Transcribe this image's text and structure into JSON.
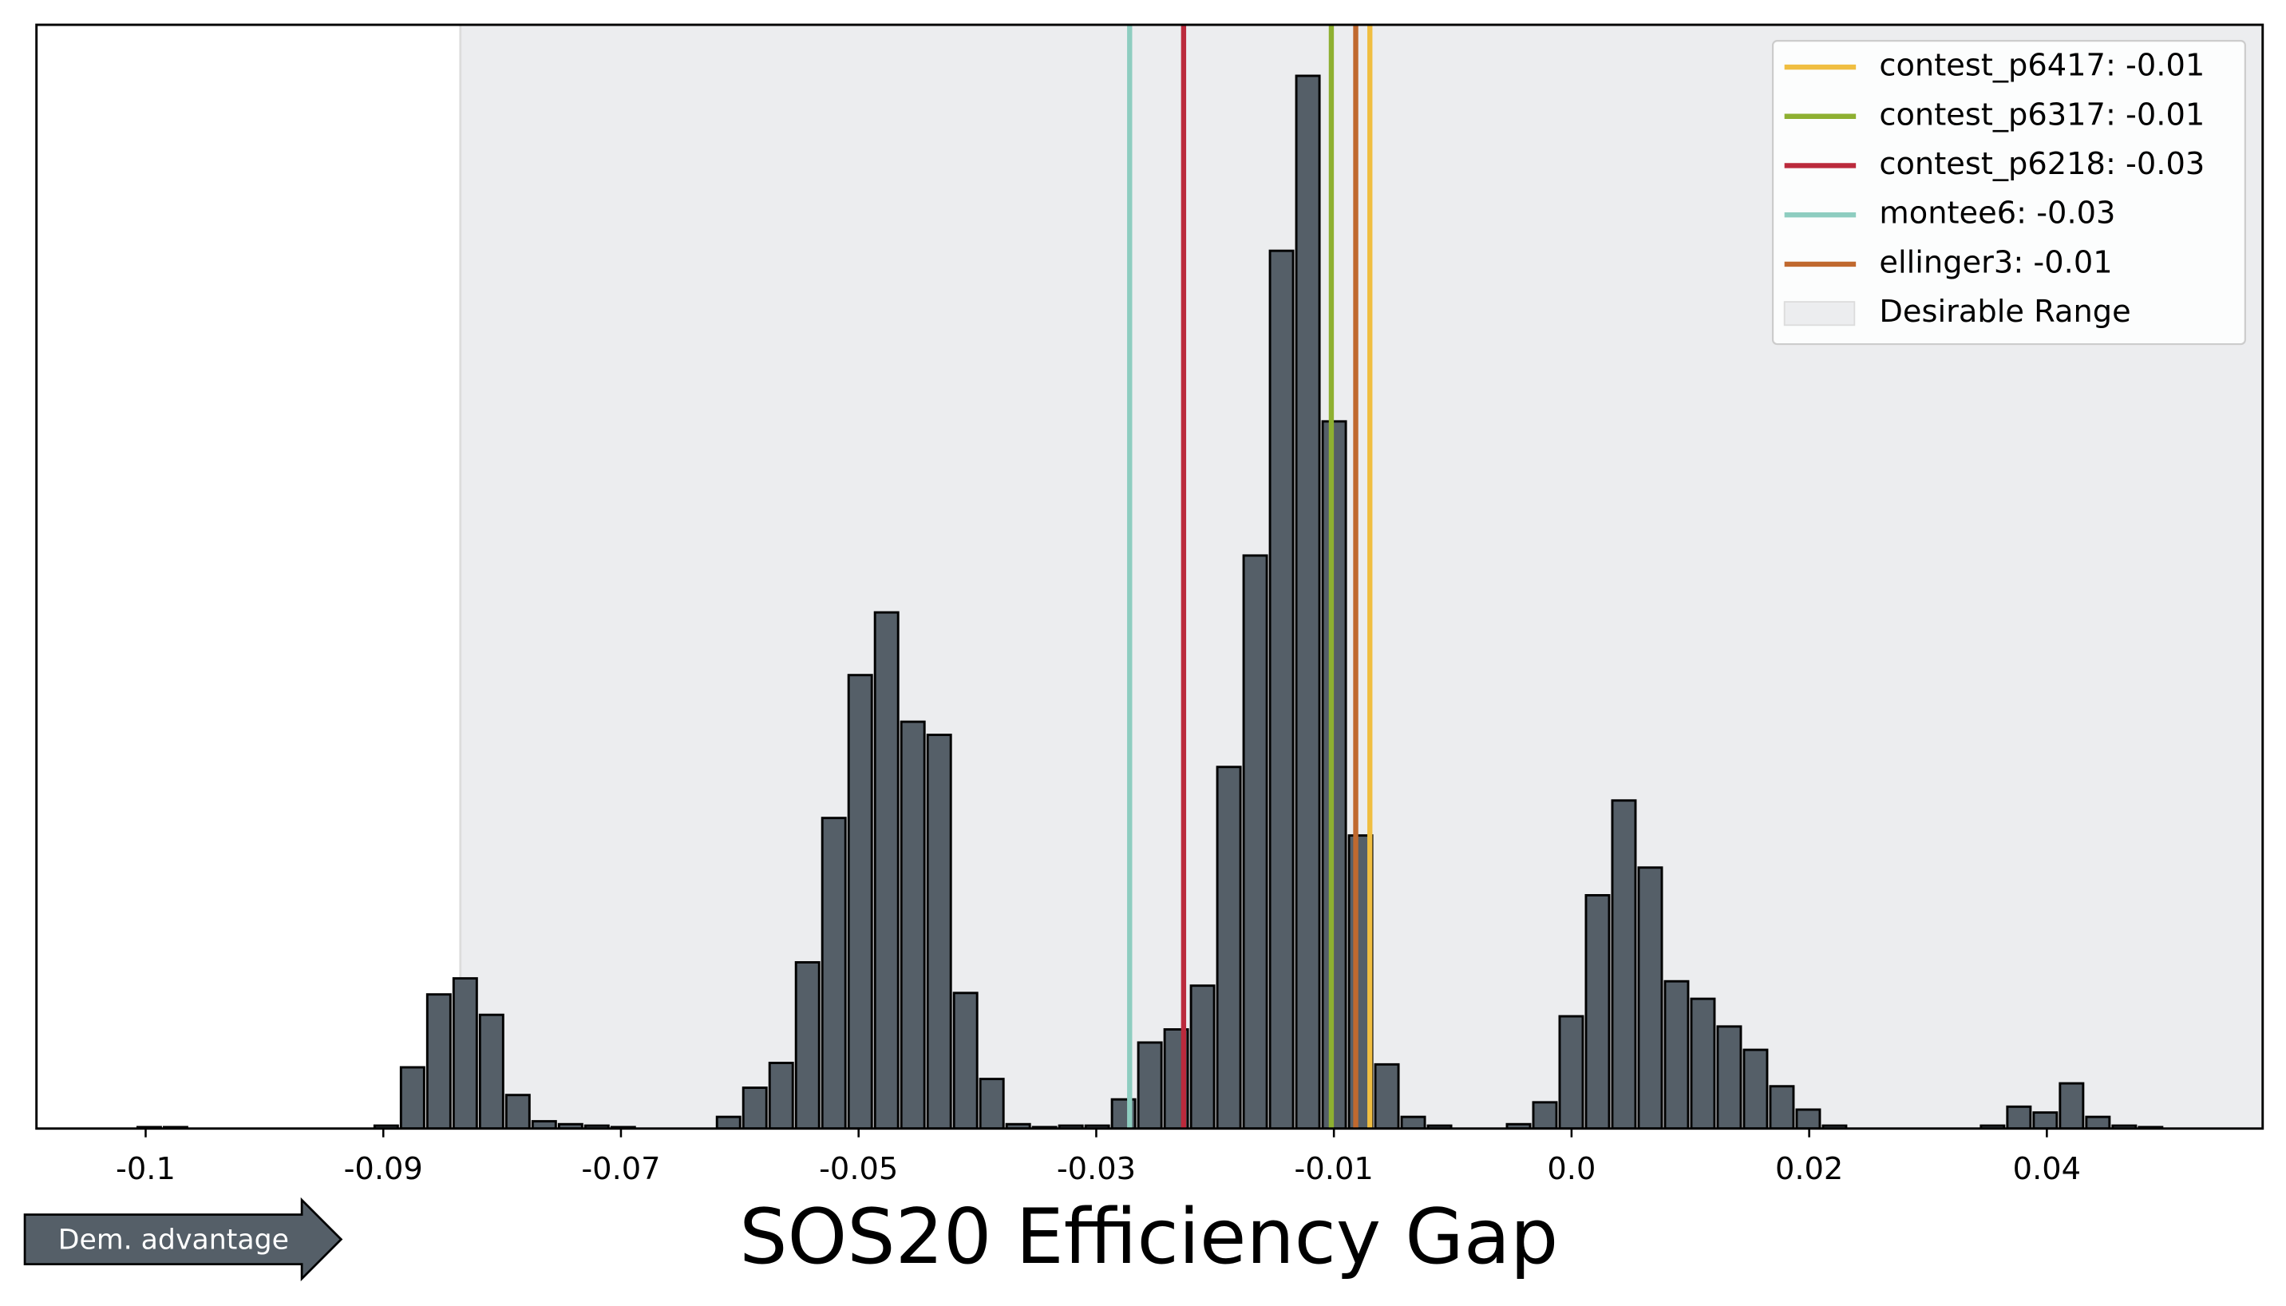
{
  "chart_data": {
    "type": "histogram",
    "xlabel": "SOS20 Efficiency Gap",
    "annotation": "Dem. advantage",
    "bar_color": "#555f68",
    "bins": [
      -0.10675,
      -0.1047,
      -0.10265,
      -0.1006,
      -0.09855,
      -0.0965,
      -0.09445,
      -0.0924,
      -0.09035,
      -0.0883,
      -0.08625,
      -0.0842,
      -0.08215,
      -0.0801,
      -0.07805,
      -0.076,
      -0.07395,
      -0.0719,
      -0.06985,
      -0.0678,
      -0.06575,
      -0.0637,
      -0.06165,
      -0.0596,
      -0.05755,
      -0.0555,
      -0.05345,
      -0.0514,
      -0.04935,
      -0.0473,
      -0.04525,
      -0.0432,
      -0.04115,
      -0.0391,
      -0.03705,
      -0.035,
      -0.03295,
      -0.0309,
      -0.02885,
      -0.0268,
      -0.02475,
      -0.0227,
      -0.02065,
      -0.0186,
      -0.01655,
      -0.0145,
      -0.01245,
      -0.0104,
      -0.00835,
      -0.0063,
      -0.00425,
      -0.0022,
      -0.00015,
      0.0019,
      0.00395,
      0.006,
      0.00805,
      0.0101,
      0.01215,
      0.0142,
      0.01625,
      0.0183,
      0.02035,
      0.0224,
      0.02445,
      0.0265,
      0.02855,
      0.0306,
      0.03265,
      0.0347,
      0.03675,
      0.0388,
      0.04085,
      0.0429,
      0.04495,
      0.047,
      0.04905,
      0.0511
    ],
    "values": [
      1,
      1,
      0,
      0,
      0,
      0,
      0,
      0,
      0,
      2,
      42,
      92,
      103,
      78,
      23,
      5,
      3,
      2,
      1,
      0,
      0,
      0,
      8,
      28,
      45,
      114,
      213,
      311,
      354,
      279,
      270,
      93,
      34,
      3,
      1,
      2,
      2,
      20,
      59,
      68,
      98,
      248,
      393,
      602,
      722,
      485,
      201,
      44,
      8,
      2,
      0,
      0,
      3,
      18,
      77,
      160,
      225,
      179,
      101,
      89,
      70,
      54,
      29,
      13,
      2,
      0,
      0,
      0,
      0,
      0,
      2,
      15,
      11,
      31,
      8,
      2,
      1
    ],
    "xlim": [
      -0.1145,
      0.0588
    ],
    "ylim": [
      0,
      757
    ],
    "xticks": [
      {
        "value": -0.106,
        "label": "-0.1"
      },
      {
        "value": -0.0875,
        "label": "-0.09"
      },
      {
        "value": -0.069,
        "label": "-0.07"
      },
      {
        "value": -0.0505,
        "label": "-0.05"
      },
      {
        "value": -0.032,
        "label": "-0.03"
      },
      {
        "value": -0.0135,
        "label": "-0.01"
      },
      {
        "value": 0.005,
        "label": "0.0"
      },
      {
        "value": 0.0235,
        "label": "0.02"
      },
      {
        "value": 0.042,
        "label": "0.04"
      }
    ],
    "lines": [
      {
        "name": "contest_p6417: -0.01",
        "value": -0.0107,
        "color": "#f0be41"
      },
      {
        "name": "contest_p6317: -0.01",
        "value": -0.0137,
        "color": "#8eb031"
      },
      {
        "name": "contest_p6218: -0.03",
        "value": -0.0252,
        "color": "#bb2a3c"
      },
      {
        "name": "montee6: -0.03",
        "value": -0.0294,
        "color": "#8ecdc0"
      },
      {
        "name": "ellinger3: -0.01",
        "value": -0.0118,
        "color": "#c0692f"
      }
    ],
    "desirable_range": {
      "name": "Desirable Range",
      "range": [
        -0.0815,
        0.0588
      ],
      "color": "#ecedef"
    },
    "legend": "upper right"
  }
}
